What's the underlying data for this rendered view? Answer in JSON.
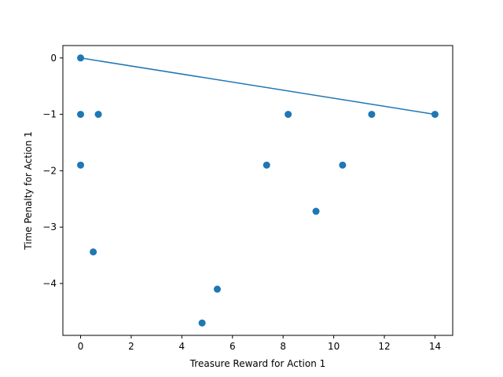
{
  "chart_data": {
    "type": "scatter",
    "title": "",
    "xlabel": "Treasure Reward for Action 1",
    "ylabel": "Time Penalty for Action 1",
    "xlim": [
      -0.7,
      14.7
    ],
    "ylim": [
      -4.92,
      0.22
    ],
    "xticks": [
      0,
      2,
      4,
      6,
      8,
      10,
      12,
      14
    ],
    "yticks": [
      0,
      -1,
      -2,
      -3,
      -4
    ],
    "grid": false,
    "colors": {
      "points": "#1f77b4",
      "line": "#1f77b4"
    },
    "series": [
      {
        "type": "scatter",
        "points": [
          {
            "x": 0,
            "y": 0
          },
          {
            "x": 0,
            "y": -1
          },
          {
            "x": 0.7,
            "y": -1
          },
          {
            "x": 0,
            "y": -1.9
          },
          {
            "x": 0.5,
            "y": -3.44
          },
          {
            "x": 4.8,
            "y": -4.7
          },
          {
            "x": 5.4,
            "y": -4.1
          },
          {
            "x": 7.35,
            "y": -1.9
          },
          {
            "x": 8.2,
            "y": -1
          },
          {
            "x": 9.3,
            "y": -2.72
          },
          {
            "x": 10.35,
            "y": -1.9
          },
          {
            "x": 11.5,
            "y": -1
          },
          {
            "x": 14,
            "y": -1
          }
        ]
      },
      {
        "type": "line",
        "points": [
          {
            "x": 0,
            "y": 0
          },
          {
            "x": 14,
            "y": -1
          }
        ]
      }
    ]
  }
}
